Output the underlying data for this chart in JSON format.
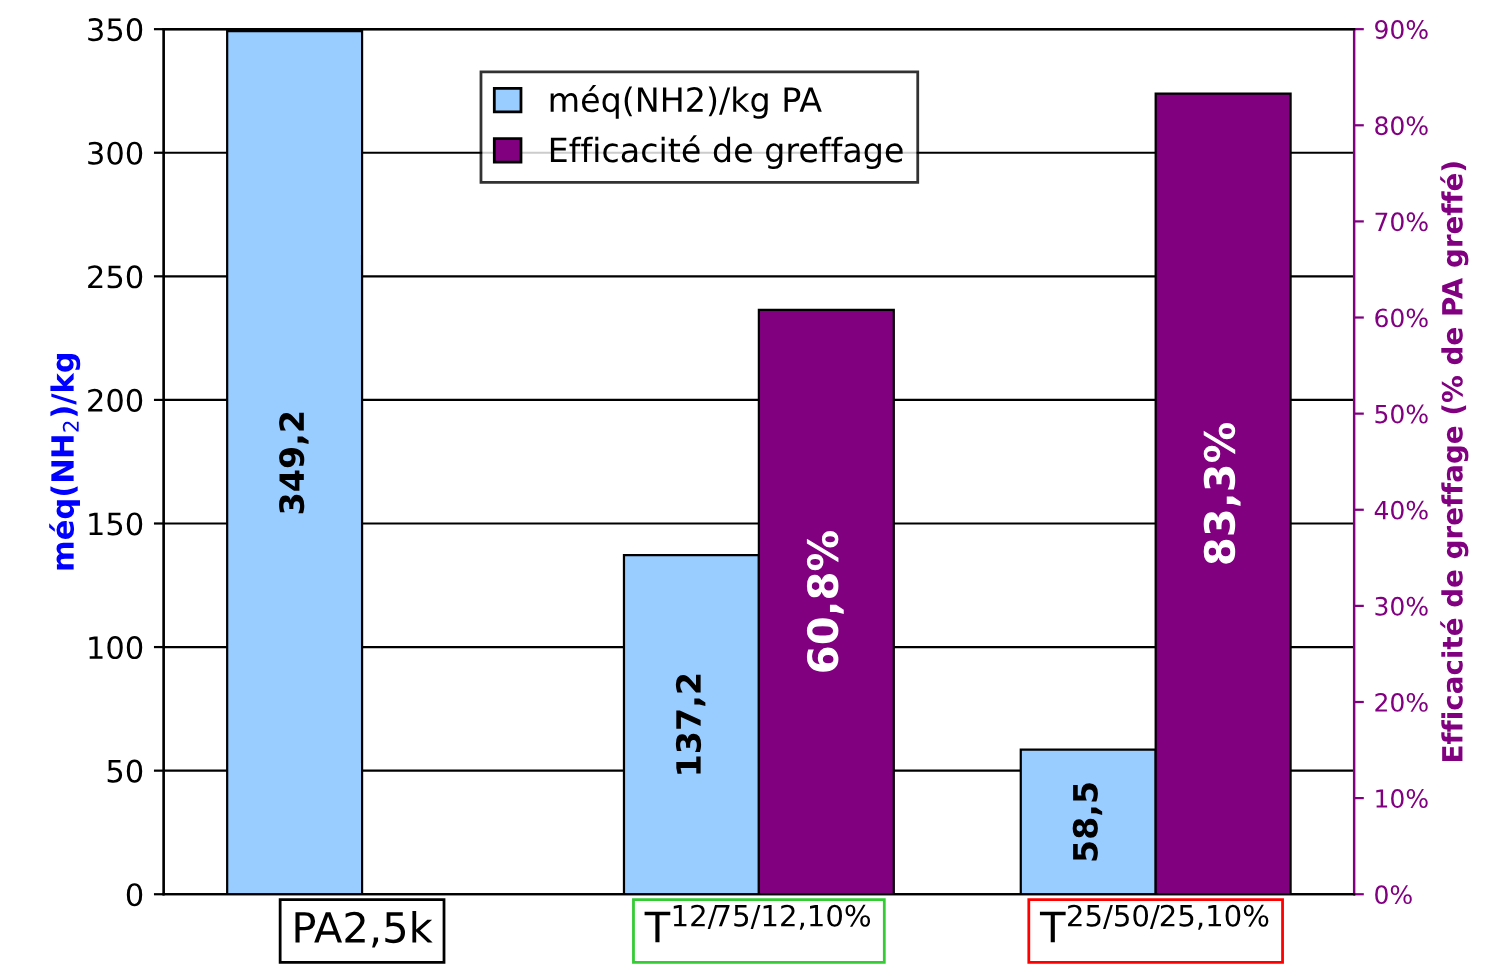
{
  "chart_data": {
    "type": "bar",
    "categories": [
      "PA2,5k",
      "T$^{12/75/12,10%}$",
      "T$^{25/50/25,10%}$"
    ],
    "ylabel": "méq(NH$_{2}$)/kg",
    "y2label": "Efficacité de greffage (% de PA greffé)",
    "series": [
      {
        "name": "méq(NH2)/kg PA",
        "color": "#99ccff",
        "values": [
          349.2,
          137.2,
          58.5
        ],
        "value_labels": [
          "349,2",
          "137,2",
          "58,5"
        ]
      },
      {
        "name": "Efficacité de greffage",
        "color": "#800080",
        "axis": "y2",
        "values": [
          null,
          60.8,
          83.3
        ],
        "value_labels": [
          null,
          "60,8%",
          "83,3%"
        ]
      }
    ],
    "ylim": [
      0,
      350
    ],
    "yticks": [
      0,
      50,
      100,
      150,
      200,
      250,
      300,
      350
    ],
    "y2lim": [
      0,
      90
    ],
    "y2ticks": [
      {
        "value": 0,
        "label": "0%"
      },
      {
        "value": 10,
        "label": "10%"
      },
      {
        "value": 20,
        "label": "20%"
      },
      {
        "value": 30,
        "label": "30%"
      },
      {
        "value": 40,
        "label": "40%"
      },
      {
        "value": 50,
        "label": "50%"
      },
      {
        "value": 60,
        "label": "60%"
      },
      {
        "value": 70,
        "label": "70%"
      },
      {
        "value": 80,
        "label": "80%"
      },
      {
        "value": 90,
        "label": "90%"
      }
    ],
    "grid": "y",
    "legend": "top"
  }
}
